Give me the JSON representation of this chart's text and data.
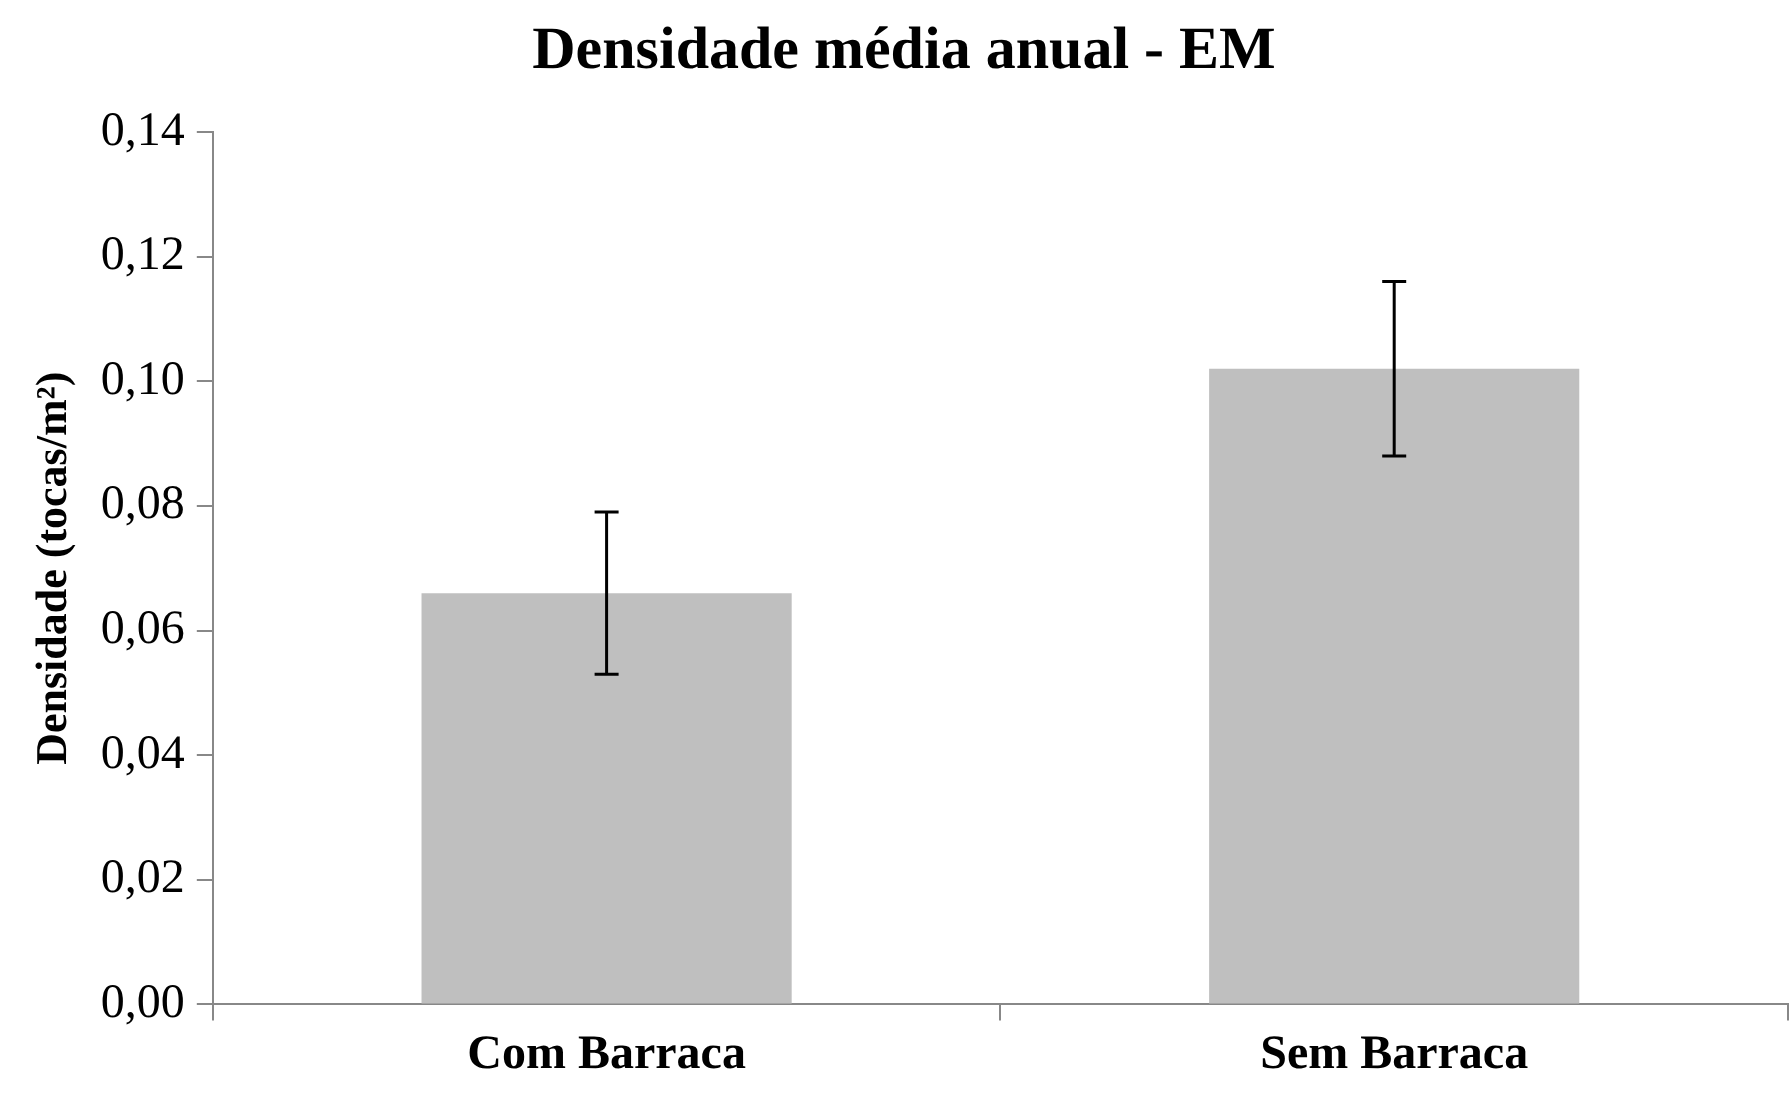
{
  "chart_data": {
    "type": "bar",
    "title": "Densidade média anual - EM",
    "ylabel": "Densidade (tocas/m²)",
    "categories": [
      "Com Barraca",
      "Sem Barraca"
    ],
    "series": [
      {
        "color": "#bfbfbf",
        "values": [
          0.066,
          0.102
        ],
        "errors": [
          0.013,
          0.014
        ]
      }
    ],
    "ylim": [
      0,
      0.14
    ],
    "yticks": [
      {
        "value": 0,
        "label": "0,00"
      },
      {
        "value": 0.02,
        "label": "0,02"
      },
      {
        "value": 0.04,
        "label": "0,04"
      },
      {
        "value": 0.06,
        "label": "0,06"
      },
      {
        "value": 0.08,
        "label": "0,08"
      },
      {
        "value": 0.1,
        "label": "0,10"
      },
      {
        "value": 0.12,
        "label": "0,12"
      },
      {
        "value": 0.14,
        "label": "0,14"
      }
    ],
    "grid": false,
    "legend": false
  }
}
